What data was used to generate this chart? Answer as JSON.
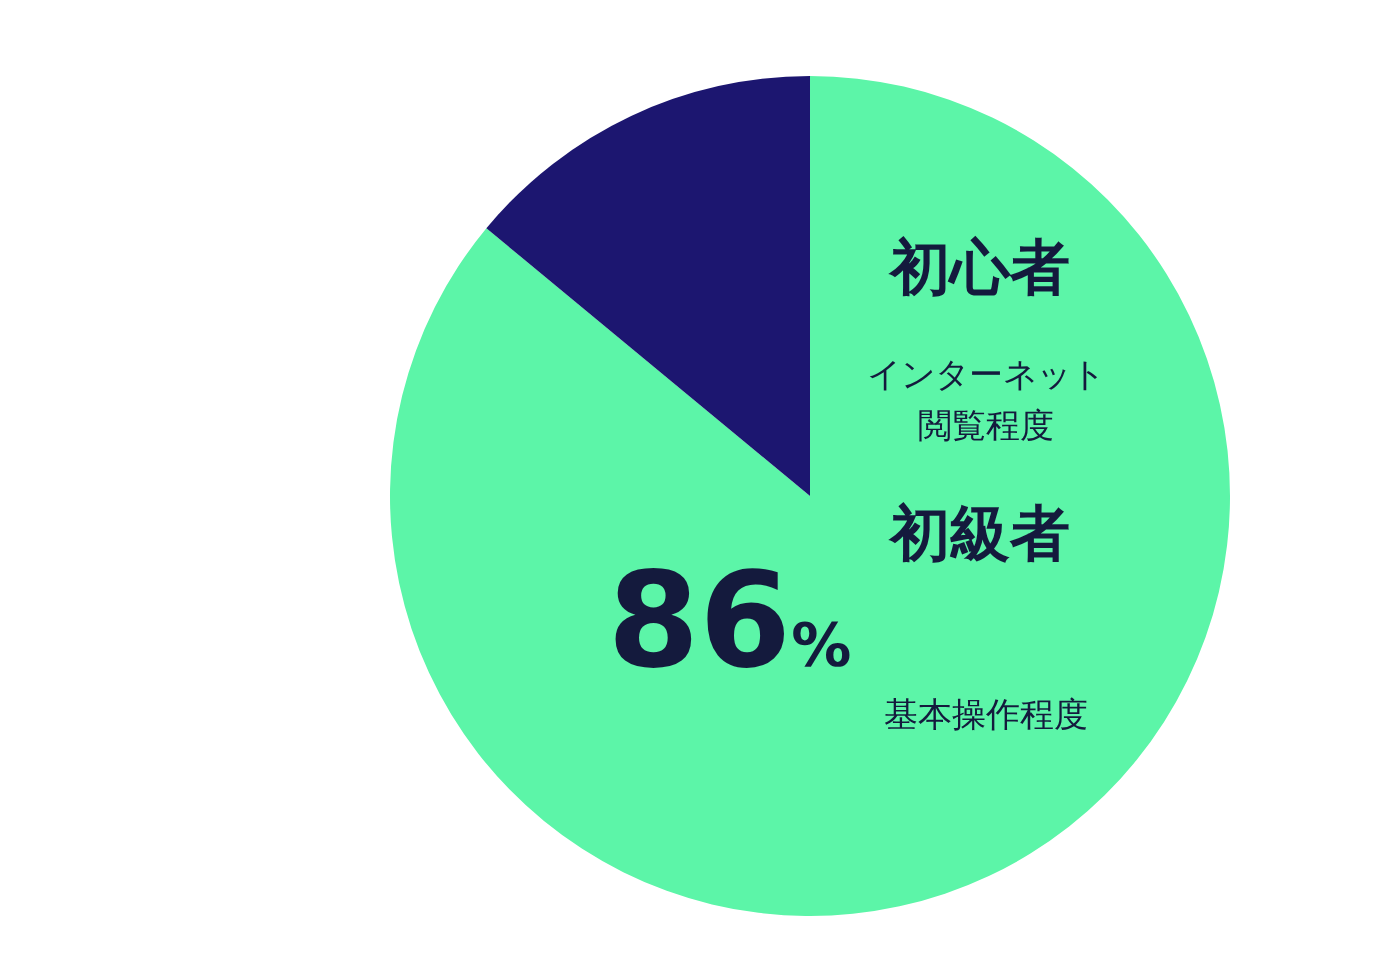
{
  "chart_data": {
    "type": "pie",
    "categories": [
      null,
      null
    ],
    "values": [
      86,
      14
    ],
    "colors": [
      "#5cf5a8",
      "#1c1670"
    ],
    "value_labels": [
      "86%",
      null
    ],
    "annotations": [
      "初心者",
      "インターネット閲覧程度",
      "初級者",
      "基本操作程度"
    ]
  }
}
